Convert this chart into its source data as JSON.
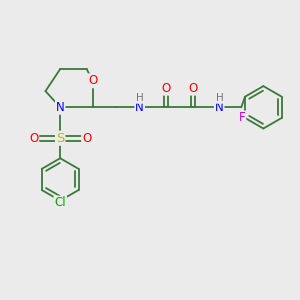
{
  "bg_color": "#ebebeb",
  "bond_color": "#3a7a3a",
  "atom_colors": {
    "O": "#ff0000",
    "N": "#0000ff",
    "S": "#bbbb00",
    "Cl": "#00aa00",
    "F": "#cc00cc",
    "H": "#777777",
    "C": "#3a7a3a"
  },
  "figsize": [
    3.0,
    3.0
  ],
  "dpi": 100
}
